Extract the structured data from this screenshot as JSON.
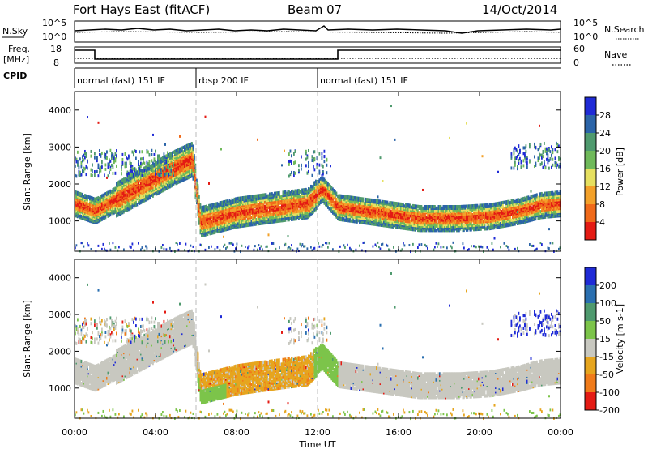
{
  "header": {
    "station": "Fort Hays East (fitACF)",
    "beam": "Beam 07",
    "date": "14/Oct/2014"
  },
  "strip_labels": {
    "nsky": "N.Sky",
    "nsky_ticks": [
      "10^5",
      "10^0"
    ],
    "nsearch": "N.Search",
    "nsearch_ticks": [
      "10^5",
      "10^0"
    ],
    "freq": "Freq.",
    "freq_unit": "[MHz]",
    "freq_ticks": [
      "18",
      "8"
    ],
    "nave": "Nave",
    "nave_ticks": [
      "60",
      "0"
    ],
    "cpid": "CPID"
  },
  "cpid_segments": [
    {
      "label": "normal (fast) 151 IF",
      "start": 0,
      "end": 6
    },
    {
      "label": "rbsp 200 IF",
      "start": 6,
      "end": 12
    },
    {
      "label": "normal (fast) 151 IF",
      "start": 12,
      "end": 24
    }
  ],
  "panels": {
    "power": {
      "ylabel": "Slant Range [km]",
      "cb_label": "Power [dB]"
    },
    "velocity": {
      "ylabel": "Slant Range [km]",
      "cb_label": "Velocity [m s-1]"
    }
  },
  "colors": {
    "power": [
      "#1f2bd6",
      "#2b64a8",
      "#4f9a6e",
      "#6fb95a",
      "#e6e060",
      "#f3a12a",
      "#f06a1a",
      "#e41b14"
    ],
    "velocity": [
      "#1f2bd6",
      "#2a6fb0",
      "#4f9a6e",
      "#7cc44a",
      "#c8c8c0",
      "#e6a51e",
      "#f07b1a",
      "#e41b14"
    ],
    "gray": "#c8c8c0"
  },
  "chart_data": {
    "type": "heatmap",
    "x_label": "Time UT",
    "x_ticks": [
      "00:00",
      "04:00",
      "08:00",
      "12:00",
      "16:00",
      "20:00",
      "00:00"
    ],
    "x_range_hours": [
      0,
      24
    ],
    "y_range_km": [
      180,
      4500
    ],
    "y_ticks": [
      "1000",
      "2000",
      "3000",
      "4000"
    ],
    "freq_mhz": [
      {
        "start": 0,
        "end": 1,
        "value": 16
      },
      {
        "start": 1,
        "end": 13,
        "value": 10.5
      },
      {
        "start": 13,
        "end": 24,
        "value": 16
      }
    ],
    "power_colorbar_ticks": [
      "4",
      "8",
      "12",
      "16",
      "20",
      "24",
      "28"
    ],
    "velocity_colorbar_ticks": [
      "200",
      "100",
      "50",
      "15",
      "-15",
      "-50",
      "-100",
      "-200"
    ],
    "power_main_band": [
      [
        0.0,
        1500
      ],
      [
        1.0,
        1300
      ],
      [
        2.0,
        1600
      ],
      [
        3.0,
        1900
      ],
      [
        4.0,
        2200
      ],
      [
        5.0,
        2500
      ],
      [
        5.8,
        2700
      ],
      [
        6.2,
        1000
      ],
      [
        8.0,
        1250
      ],
      [
        10.0,
        1400
      ],
      [
        11.5,
        1500
      ],
      [
        12.2,
        1900
      ],
      [
        13.0,
        1400
      ],
      [
        15.0,
        1250
      ],
      [
        17.0,
        1100
      ],
      [
        19.0,
        1100
      ],
      [
        20.5,
        1150
      ],
      [
        22.0,
        1300
      ],
      [
        23.0,
        1450
      ],
      [
        24.0,
        1500
      ]
    ]
  }
}
